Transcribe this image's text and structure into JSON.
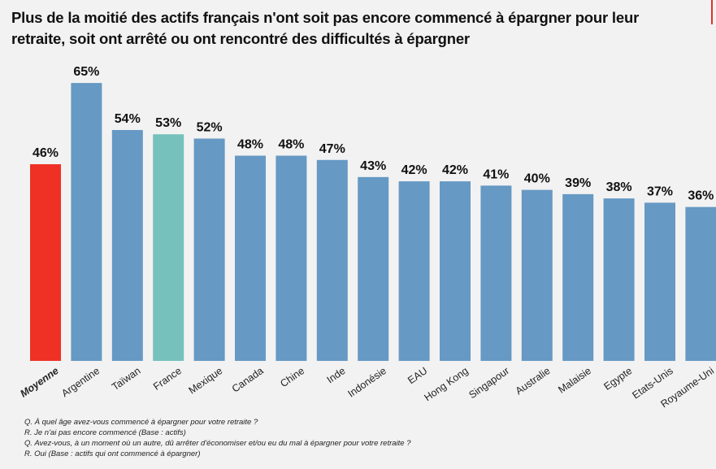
{
  "title": "Plus de la moitié des actifs français n'ont soit pas encore commencé à épargner pour leur retraite, soit ont arrêté ou ont rencontré des difficultés à épargner",
  "chart_data": {
    "type": "bar",
    "title": "Plus de la moitié des actifs français n'ont soit pas encore commencé à épargner pour leur retraite, soit ont arrêté ou ont rencontré des difficultés à épargner",
    "categories": [
      "Moyenne",
      "Argentine",
      "Taïwan",
      "France",
      "Mexique",
      "Canada",
      "Chine",
      "Inde",
      "Indonésie",
      "EAU",
      "Hong Kong",
      "Singapour",
      "Australie",
      "Malaisie",
      "Egypte",
      "Etats-Unis",
      "Royaume-Uni"
    ],
    "values": [
      46,
      65,
      54,
      53,
      52,
      48,
      48,
      47,
      43,
      42,
      42,
      41,
      40,
      39,
      38,
      37,
      36
    ],
    "data_labels": [
      "46%",
      "65%",
      "54%",
      "53%",
      "52%",
      "48%",
      "48%",
      "47%",
      "43%",
      "42%",
      "42%",
      "41%",
      "40%",
      "39%",
      "38%",
      "37%",
      "36%"
    ],
    "unit": "%",
    "ylim": [
      0,
      70
    ],
    "grid": false,
    "colors": {
      "default": "#6699c4",
      "Moyenne": "#ee3124",
      "France": "#76c1bb"
    }
  },
  "notes": [
    "Q. À quel âge avez-vous commencé à épargner pour votre retraite ?",
    "R. Je n'ai pas encore commencé (Base : actifs)",
    "Q. Avez-vous, à un moment où un autre, dû arrêter d'économiser et/ou eu du mal à épargner pour votre retraite ?",
    "R. Oui (Base : actifs qui ont commencé à épargner)"
  ]
}
